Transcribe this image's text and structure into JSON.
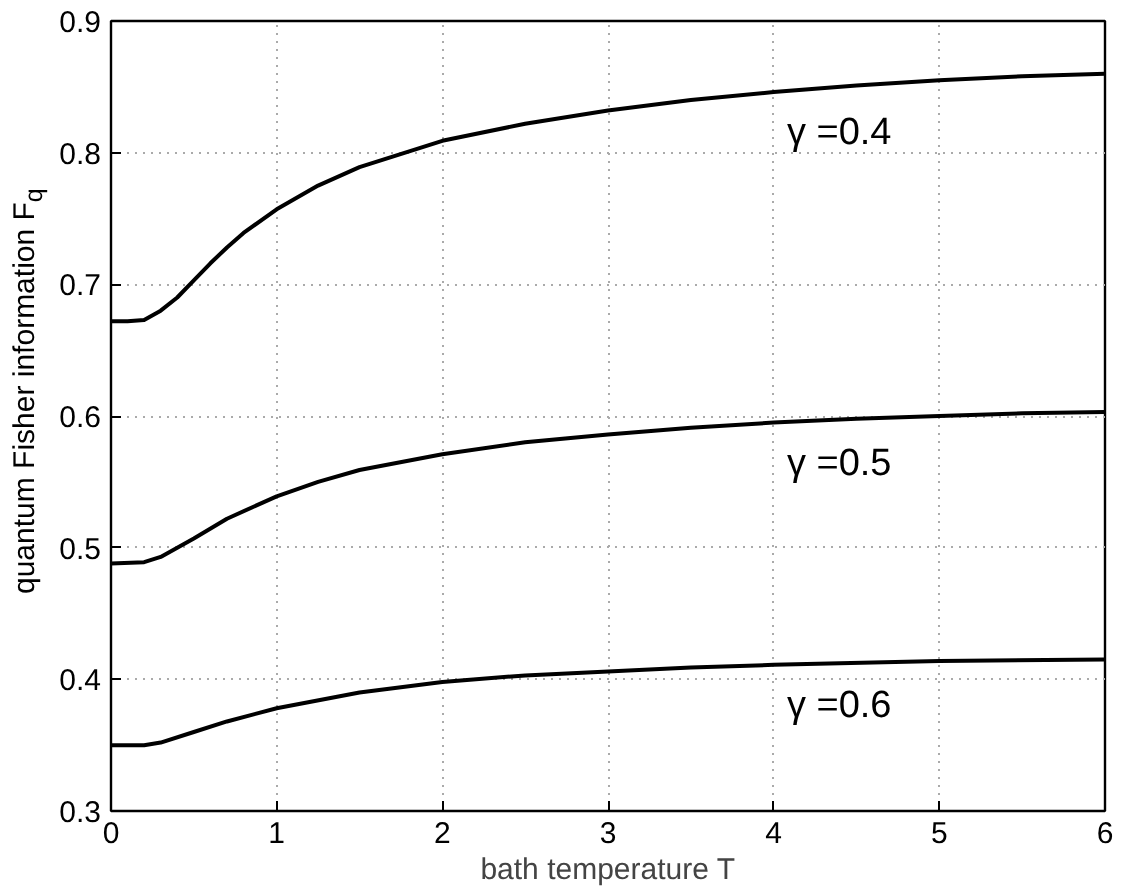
{
  "chart_data": {
    "type": "line",
    "xlabel": "bath temperature T",
    "ylabel": "quantum Fisher information F$_{q}$",
    "xlim": [
      0,
      6
    ],
    "ylim": [
      0.3,
      0.9
    ],
    "xticks": [
      0,
      1,
      2,
      3,
      4,
      5,
      6
    ],
    "yticks": [
      0.3,
      0.4,
      0.5,
      0.6,
      0.7,
      0.8,
      0.9
    ],
    "grid": true,
    "line_style": "solid",
    "series": [
      {
        "name": "γ =0.4",
        "color": "#000000",
        "x": [
          0,
          0.1,
          0.2,
          0.3,
          0.4,
          0.5,
          0.6,
          0.7,
          0.8,
          1.0,
          1.25,
          1.5,
          2,
          2.5,
          3,
          3.5,
          4,
          4.5,
          5,
          5.5,
          6
        ],
        "values": [
          0.672,
          0.672,
          0.673,
          0.68,
          0.69,
          0.703,
          0.716,
          0.728,
          0.739,
          0.757,
          0.775,
          0.789,
          0.809,
          0.822,
          0.832,
          0.84,
          0.846,
          0.851,
          0.855,
          0.858,
          0.86
        ]
      },
      {
        "name": "γ =0.5",
        "color": "#000000",
        "x": [
          0,
          0.2,
          0.3,
          0.4,
          0.5,
          0.7,
          1,
          1.25,
          1.5,
          2,
          2.5,
          3,
          3.5,
          4,
          4.5,
          5,
          5.5,
          6
        ],
        "values": [
          0.488,
          0.489,
          0.493,
          0.5,
          0.507,
          0.522,
          0.539,
          0.55,
          0.559,
          0.571,
          0.58,
          0.586,
          0.591,
          0.595,
          0.598,
          0.6,
          0.602,
          0.603
        ]
      },
      {
        "name": "γ =0.6",
        "color": "#000000",
        "x": [
          0,
          0.2,
          0.3,
          0.5,
          0.7,
          1,
          1.5,
          2,
          2.5,
          3,
          3.5,
          4,
          5,
          6
        ],
        "values": [
          0.35,
          0.35,
          0.352,
          0.36,
          0.368,
          0.378,
          0.39,
          0.398,
          0.403,
          0.406,
          0.409,
          0.411,
          0.414,
          0.415
        ]
      }
    ]
  }
}
